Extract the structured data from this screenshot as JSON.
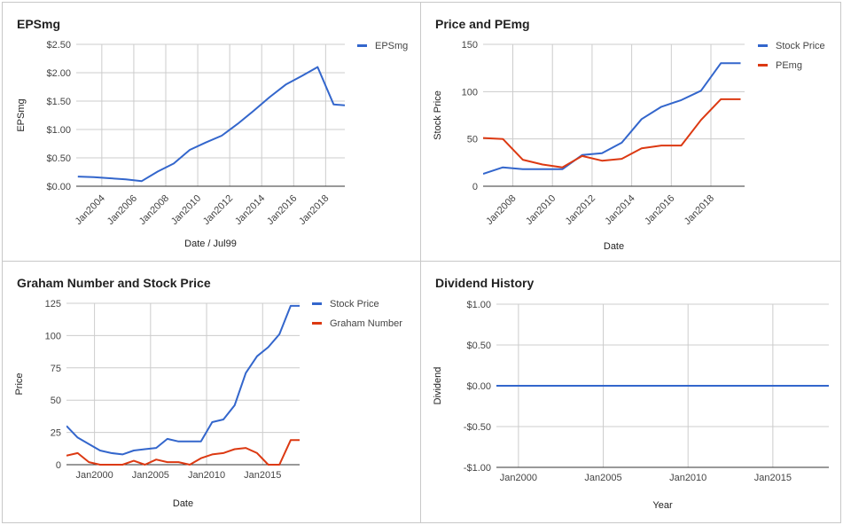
{
  "chart_data": [
    {
      "type": "line",
      "title": "EPSmg",
      "xlabel": "Date / Jul99",
      "ylabel": "EPSmg",
      "x_axis": "date",
      "x_range": [
        2002.4,
        2019.2
      ],
      "ylim": [
        0,
        2.5
      ],
      "y_ticks": [
        0,
        0.5,
        1.0,
        1.5,
        2.0,
        2.5
      ],
      "y_tick_labels": [
        "$0.00",
        "$0.50",
        "$1.00",
        "$1.50",
        "$2.00",
        "$2.50"
      ],
      "x_ticks": [
        2004,
        2006,
        2008,
        2010,
        2012,
        2014,
        2016,
        2018
      ],
      "x_tick_labels": [
        "Jan2004",
        "Jan2006",
        "Jan2008",
        "Jan2010",
        "Jan2012",
        "Jan2014",
        "Jan2016",
        "Jan2018"
      ],
      "x_tick_rotation": -45,
      "legend_position": "top-right",
      "grid": true,
      "series": [
        {
          "name": "EPSmg",
          "color": "#3366cc",
          "x": [
            2002.5,
            2003.5,
            2004.5,
            2005.5,
            2006.5,
            2007.5,
            2008.5,
            2009.5,
            2010.5,
            2011.5,
            2012.5,
            2013.5,
            2014.5,
            2015.5,
            2016.5,
            2017.5,
            2018.5,
            2019.5
          ],
          "values": [
            0.17,
            0.16,
            0.14,
            0.12,
            0.09,
            0.26,
            0.4,
            0.64,
            0.77,
            0.89,
            1.1,
            1.33,
            1.57,
            1.79,
            1.94,
            2.1,
            1.44,
            1.42
          ]
        }
      ]
    },
    {
      "type": "line",
      "title": "Price and PEmg",
      "xlabel": "Date",
      "ylabel": "Stock Price",
      "x_axis": "date",
      "x_range": [
        2006.5,
        2019.7
      ],
      "ylim": [
        0,
        150
      ],
      "y_ticks": [
        0,
        50,
        100,
        150
      ],
      "y_tick_labels": [
        "0",
        "50",
        "100",
        "150"
      ],
      "x_ticks": [
        2008,
        2010,
        2012,
        2014,
        2016,
        2018
      ],
      "x_tick_labels": [
        "Jan2008",
        "Jan2010",
        "Jan2012",
        "Jan2014",
        "Jan2016",
        "Jan2018"
      ],
      "x_tick_rotation": -45,
      "legend_position": "top-right",
      "grid": true,
      "series": [
        {
          "name": "Stock Price",
          "color": "#3366cc",
          "x": [
            2006.5,
            2007.5,
            2008.5,
            2009.5,
            2010.5,
            2011.5,
            2012.5,
            2013.5,
            2014.5,
            2015.5,
            2016.5,
            2017.5,
            2018.5,
            2019.5
          ],
          "values": [
            13,
            20,
            18,
            18,
            18,
            33,
            35,
            46,
            71,
            84,
            91,
            101,
            130,
            130
          ]
        },
        {
          "name": "PEmg",
          "color": "#dc3912",
          "x": [
            2006.5,
            2007.5,
            2008.5,
            2009.5,
            2010.5,
            2011.5,
            2012.5,
            2013.5,
            2014.5,
            2015.5,
            2016.5,
            2017.5,
            2018.5,
            2019.5
          ],
          "values": [
            51,
            50,
            28,
            23,
            20,
            32,
            27,
            29,
            40,
            43,
            43,
            70,
            92,
            92
          ]
        }
      ]
    },
    {
      "type": "line",
      "title": "Graham Number and Stock Price",
      "xlabel": "Date",
      "ylabel": "Price",
      "x_axis": "date",
      "x_range": [
        1997.5,
        2018.3
      ],
      "ylim": [
        0,
        125
      ],
      "y_ticks": [
        0,
        25,
        50,
        75,
        100,
        125
      ],
      "y_tick_labels": [
        "0",
        "25",
        "50",
        "75",
        "100",
        "125"
      ],
      "x_ticks": [
        2000,
        2005,
        2010,
        2015
      ],
      "x_tick_labels": [
        "Jan2000",
        "Jan2005",
        "Jan2010",
        "Jan2015"
      ],
      "legend_position": "top-right",
      "grid": true,
      "series": [
        {
          "name": "Stock Price",
          "color": "#3366cc",
          "x": [
            1997.5,
            1998.5,
            1999.5,
            2000.5,
            2001.5,
            2002.5,
            2003.5,
            2004.5,
            2005.5,
            2006.5,
            2007.5,
            2008.5,
            2009.5,
            2010.5,
            2011.5,
            2012.5,
            2013.5,
            2014.5,
            2015.5,
            2016.5,
            2017.5,
            2018.5
          ],
          "values": [
            30,
            21,
            16,
            11,
            9,
            8,
            11,
            12,
            13,
            20,
            18,
            18,
            18,
            33,
            35,
            46,
            71,
            84,
            91,
            101,
            123,
            123
          ]
        },
        {
          "name": "Graham Number",
          "color": "#dc3912",
          "x": [
            1997.5,
            1998.5,
            1999.5,
            2000.5,
            2001.5,
            2002.5,
            2003.5,
            2004.5,
            2005.5,
            2006.5,
            2007.5,
            2008.5,
            2009.5,
            2010.5,
            2011.5,
            2012.5,
            2013.5,
            2014.5,
            2015.5,
            2016.5,
            2017.5,
            2018.5
          ],
          "values": [
            7,
            9,
            2,
            0,
            0,
            0,
            3,
            0,
            4,
            2,
            2,
            0,
            5,
            8,
            9,
            12,
            13,
            9,
            0,
            0,
            19,
            19
          ]
        }
      ]
    },
    {
      "type": "line",
      "title": "Dividend History",
      "xlabel": "Year",
      "ylabel": "Dividend",
      "x_axis": "date",
      "x_range": [
        1998.7,
        2018.3
      ],
      "ylim": [
        -1,
        1
      ],
      "y_ticks": [
        -1,
        -0.5,
        0,
        0.5,
        1
      ],
      "y_tick_labels": [
        "-$1.00",
        "-$0.50",
        "$0.00",
        "$0.50",
        "$1.00"
      ],
      "x_ticks": [
        2000,
        2005,
        2010,
        2015
      ],
      "x_tick_labels": [
        "Jan2000",
        "Jan2005",
        "Jan2010",
        "Jan2015"
      ],
      "grid": true,
      "series": [
        {
          "color": "#3366cc",
          "x": [
            1998.7,
            2018.3
          ],
          "values": [
            0,
            0
          ]
        }
      ]
    }
  ]
}
